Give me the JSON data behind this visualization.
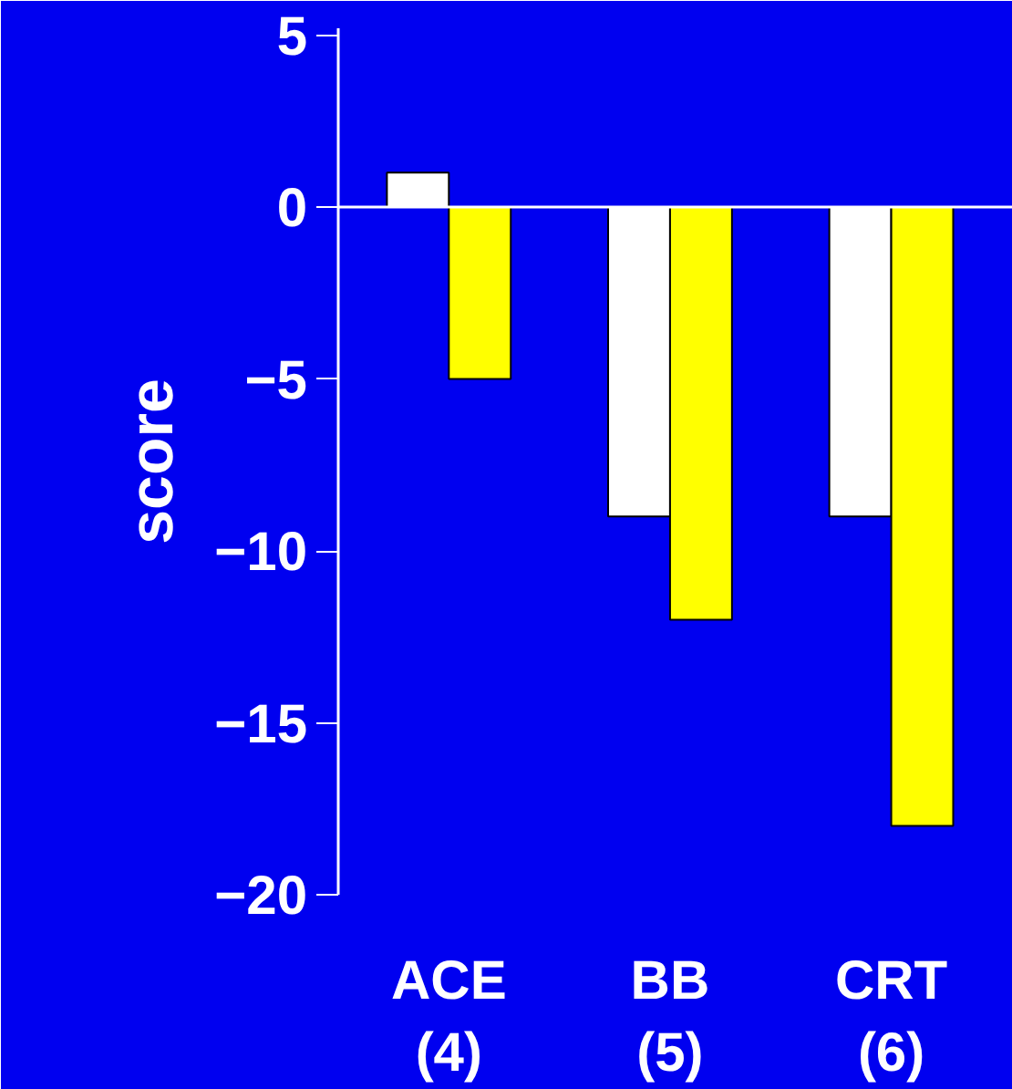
{
  "chart_data": {
    "type": "bar",
    "ylabel": "score",
    "categories": [
      "ACE\n(4)",
      "BB\n(5)",
      "CRT\n(6)"
    ],
    "series": [
      {
        "color": "#ffffff",
        "values": [
          1,
          -9,
          -9
        ]
      },
      {
        "color": "#ffff00",
        "values": [
          -5,
          -12,
          -18
        ]
      }
    ],
    "ylim": [
      -20,
      5.2
    ],
    "yticks": [
      -20,
      -15,
      -10,
      -5,
      0,
      5
    ]
  }
}
